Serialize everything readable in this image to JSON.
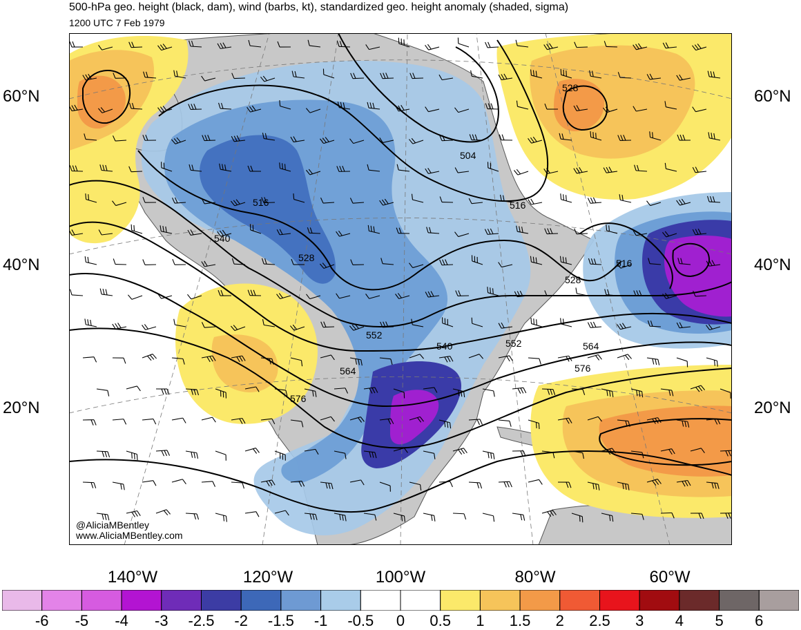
{
  "title": "500-hPa geo. height (black, dam), wind (barbs, kt), standardized geo. height anomaly (shaded, sigma)",
  "valid_time": "1200 UTC 7 Feb 1979",
  "credits": [
    "@AliciaMBentley",
    "www.AliciaMBentley.com"
  ],
  "map": {
    "lat_labels": [
      "60°N",
      "40°N",
      "20°N"
    ],
    "lon_labels": [
      "140°W",
      "120°W",
      "100°W",
      "80°W",
      "60°W"
    ],
    "contour_labels": [
      "504",
      "516",
      "516",
      "516",
      "528",
      "528",
      "528",
      "540",
      "540",
      "552",
      "552",
      "564",
      "564",
      "576",
      "576"
    ],
    "colors": {
      "land": "#c8c8c8",
      "contour": "#000000",
      "neg_0_5_1": "#a6c9e8",
      "neg_1_1_5": "#6e9fd6",
      "neg_1_5_2": "#4472c0",
      "neg_2_2_5": "#3a3ba8",
      "neg_2_5_3": "#6a2cc0",
      "neg_3_4": "#a020d0",
      "pos_0_5_1": "#fbe96a",
      "pos_1_1_5": "#f6c45a",
      "pos_1_5_2": "#f39a48"
    }
  },
  "colorbar": {
    "ticks": [
      "-6",
      "-5",
      "-4",
      "-3",
      "-2.5",
      "-2",
      "-1.5",
      "-1",
      "-0.5",
      "0",
      "0.5",
      "1",
      "1.5",
      "2",
      "2.5",
      "3",
      "4",
      "5",
      "6"
    ],
    "colors": [
      "#e9b9e9",
      "#e383e8",
      "#d65be0",
      "#b314d2",
      "#6f2cb8",
      "#3c3ca4",
      "#3d68b8",
      "#6e9ad3",
      "#a9cce9",
      "#ffffff",
      "#ffffff",
      "#fbe96a",
      "#f6c45a",
      "#f39a48",
      "#f05a34",
      "#e8141c",
      "#a10c10",
      "#6b2a2a",
      "#6e6666",
      "#a89e9e"
    ]
  }
}
